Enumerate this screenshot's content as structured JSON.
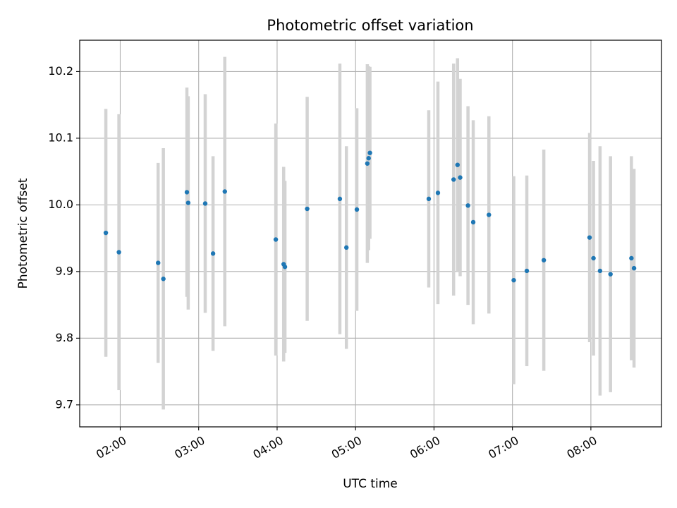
{
  "chart_data": {
    "type": "scatter",
    "title": "Photometric offset variation",
    "xlabel": "UTC time",
    "ylabel": "Photometric offset",
    "grid": true,
    "xlim": [
      "01:29",
      "08:54"
    ],
    "ylim": [
      9.667,
      10.247
    ],
    "x_ticks": [
      "02:00",
      "03:00",
      "04:00",
      "05:00",
      "06:00",
      "07:00",
      "08:00"
    ],
    "y_ticks": [
      9.7,
      9.8,
      9.9,
      10.0,
      10.1,
      10.2
    ],
    "y_tick_labels": [
      "9.7",
      "9.8",
      "9.9",
      "10.0",
      "10.1",
      "10.2"
    ],
    "colors": {
      "marker": "#1f77b4",
      "errorbar": "#d3d3d3",
      "grid": "#b0b0b0"
    },
    "series": [
      {
        "points": [
          {
            "x": "01:49",
            "y": 9.958,
            "err": 0.186
          },
          {
            "x": "01:59",
            "y": 9.929,
            "err": 0.207
          },
          {
            "x": "02:29",
            "y": 9.913,
            "err": 0.15
          },
          {
            "x": "02:33",
            "y": 9.889,
            "err": 0.196
          },
          {
            "x": "02:51",
            "y": 10.019,
            "err": 0.157
          },
          {
            "x": "02:52",
            "y": 10.003,
            "err": 0.16
          },
          {
            "x": "03:05",
            "y": 10.002,
            "err": 0.164
          },
          {
            "x": "03:11",
            "y": 9.927,
            "err": 0.146
          },
          {
            "x": "03:20",
            "y": 10.02,
            "err": 0.202
          },
          {
            "x": "03:59",
            "y": 9.948,
            "err": 0.174
          },
          {
            "x": "04:05",
            "y": 9.911,
            "err": 0.146
          },
          {
            "x": "04:06",
            "y": 9.907,
            "err": 0.129
          },
          {
            "x": "04:23",
            "y": 9.994,
            "err": 0.168
          },
          {
            "x": "04:48",
            "y": 10.009,
            "err": 0.203
          },
          {
            "x": "04:53",
            "y": 9.936,
            "err": 0.152
          },
          {
            "x": "05:01",
            "y": 9.993,
            "err": 0.152
          },
          {
            "x": "05:09",
            "y": 10.062,
            "err": 0.149
          },
          {
            "x": "05:10",
            "y": 10.07,
            "err": 0.138
          },
          {
            "x": "05:11",
            "y": 10.078,
            "err": 0.129
          },
          {
            "x": "05:56",
            "y": 10.009,
            "err": 0.133
          },
          {
            "x": "06:03",
            "y": 10.018,
            "err": 0.167
          },
          {
            "x": "06:15",
            "y": 10.038,
            "err": 0.174
          },
          {
            "x": "06:18",
            "y": 10.06,
            "err": 0.16
          },
          {
            "x": "06:20",
            "y": 10.041,
            "err": 0.148
          },
          {
            "x": "06:26",
            "y": 9.999,
            "err": 0.149
          },
          {
            "x": "06:30",
            "y": 9.974,
            "err": 0.153
          },
          {
            "x": "06:42",
            "y": 9.985,
            "err": 0.148
          },
          {
            "x": "07:01",
            "y": 9.887,
            "err": 0.156
          },
          {
            "x": "07:11",
            "y": 9.901,
            "err": 0.143
          },
          {
            "x": "07:24",
            "y": 9.917,
            "err": 0.166
          },
          {
            "x": "07:59",
            "y": 9.951,
            "err": 0.157
          },
          {
            "x": "08:02",
            "y": 9.92,
            "err": 0.146
          },
          {
            "x": "08:07",
            "y": 9.901,
            "err": 0.187
          },
          {
            "x": "08:15",
            "y": 9.896,
            "err": 0.177
          },
          {
            "x": "08:31",
            "y": 9.92,
            "err": 0.153
          },
          {
            "x": "08:33",
            "y": 9.905,
            "err": 0.149
          }
        ]
      }
    ]
  }
}
